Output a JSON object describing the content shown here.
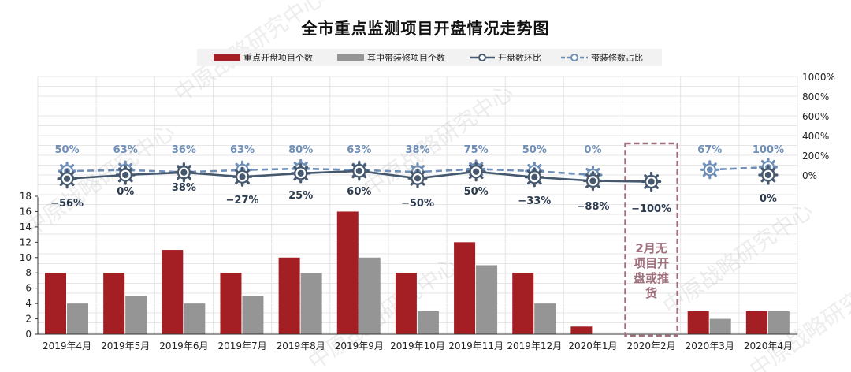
{
  "chart_data": {
    "type": "bar+line",
    "title": "全市重点监测项目开盘情况走势图",
    "categories": [
      "2019年4月",
      "2019年5月",
      "2019年6月",
      "2019年7月",
      "2019年8月",
      "2019年9月",
      "2019年10月",
      "2019年11月",
      "2019年12月",
      "2020年1月",
      "2020年2月",
      "2020年3月",
      "2020年4月"
    ],
    "bar_series": [
      {
        "name": "重点开盘项目个数",
        "color": "#a31f24",
        "values": [
          8,
          8,
          11,
          8,
          10,
          16,
          8,
          12,
          8,
          1,
          0,
          3,
          3
        ]
      },
      {
        "name": "其中带装修项目个数",
        "color": "#959595",
        "values": [
          4,
          5,
          4,
          5,
          8,
          10,
          3,
          9,
          4,
          0,
          0,
          2,
          3
        ]
      }
    ],
    "line_series": [
      {
        "name": "开盘数环比",
        "color": "#46586e",
        "style": "solid",
        "values": [
          -56,
          0,
          38,
          -27,
          25,
          60,
          -50,
          50,
          -33,
          -88,
          -100,
          null,
          0
        ],
        "labels": [
          "−56%",
          "0%",
          "38%",
          "−27%",
          "25%",
          "60%",
          "−50%",
          "50%",
          "−33%",
          "−88%",
          "−100%",
          "",
          "0%"
        ]
      },
      {
        "name": "带装修数占比",
        "color": "#6f8fb7",
        "style": "dashed",
        "values": [
          50,
          63,
          36,
          63,
          80,
          63,
          38,
          75,
          50,
          0,
          null,
          67,
          100
        ],
        "labels": [
          "50%",
          "63%",
          "36%",
          "63%",
          "80%",
          "63%",
          "38%",
          "75%",
          "50%",
          "0%",
          "",
          "67%",
          "100%"
        ]
      }
    ],
    "left_axis": {
      "ticks": [
        "0",
        "2",
        "4",
        "6",
        "8",
        "10",
        "12",
        "14",
        "16",
        "18"
      ],
      "min": 0,
      "max": 18
    },
    "right_axis": {
      "ticks": [
        "0%",
        "200%",
        "400%",
        "600%",
        "800%",
        "1000%"
      ],
      "min": 0,
      "max": 1000
    },
    "grid": true,
    "legend_position": "top",
    "annotation": {
      "text_lines": [
        "2月无",
        "项目开",
        "盘或推",
        "货"
      ],
      "category": "2020年2月",
      "color": "#a0707d"
    },
    "watermark": "中原战略研究中心"
  }
}
